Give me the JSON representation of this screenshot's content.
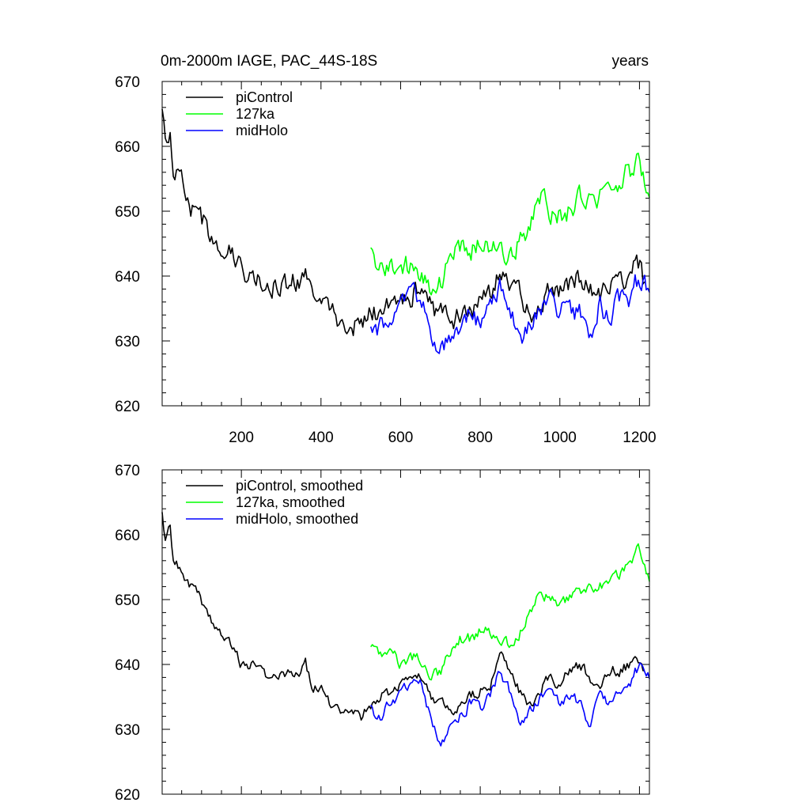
{
  "chart_data": [
    {
      "type": "line",
      "title": "0m-2000m IAGE, PAC_44S-18S",
      "units_label": "years",
      "xlim": [
        1,
        1225
      ],
      "ylim": [
        620,
        670
      ],
      "x_ticks": [
        200,
        400,
        600,
        800,
        1000,
        1200
      ],
      "x_tick_labels": [
        "200",
        "400",
        "600",
        "800",
        "1000",
        "1200"
      ],
      "y_ticks": [
        620,
        630,
        640,
        650,
        660,
        670
      ],
      "y_tick_labels": [
        "620",
        "630",
        "640",
        "650",
        "660",
        "670"
      ],
      "legend": "top-left",
      "series": [
        {
          "name": "piControl",
          "color": "#000000",
          "x": [
            1,
            10,
            20,
            30,
            50,
            70,
            90,
            110,
            130,
            150,
            175,
            200,
            225,
            250,
            275,
            300,
            325,
            350,
            360,
            375,
            400,
            425,
            450,
            475,
            500,
            525,
            550,
            575,
            600,
            625,
            650,
            675,
            700,
            725,
            750,
            775,
            800,
            825,
            850,
            875,
            900,
            925,
            950,
            975,
            1000,
            1025,
            1050,
            1075,
            1100,
            1125,
            1150,
            1175,
            1200,
            1215
          ],
          "y": [
            665,
            660,
            662,
            656,
            654,
            651,
            650,
            648,
            646,
            645,
            643,
            641,
            640,
            639,
            638,
            638,
            639,
            639,
            641,
            637,
            636,
            634,
            633,
            633,
            632,
            634,
            635,
            636,
            637,
            637,
            638,
            635,
            634,
            633,
            634,
            635,
            636,
            637,
            641,
            639,
            637,
            634,
            636,
            638,
            637,
            639,
            640,
            638,
            637,
            639,
            639,
            640,
            642,
            638
          ]
        },
        {
          "name": "127ka",
          "color": "#00ff00",
          "x": [
            525,
            550,
            575,
            600,
            625,
            650,
            675,
            700,
            725,
            750,
            775,
            800,
            825,
            850,
            875,
            900,
            925,
            950,
            975,
            1000,
            1025,
            1050,
            1075,
            1100,
            1125,
            1150,
            1175,
            1200,
            1210,
            1225
          ],
          "y": [
            644,
            641,
            642,
            640,
            642,
            641,
            638,
            639,
            642,
            644,
            644,
            646,
            645,
            644,
            643,
            645,
            648,
            652,
            650,
            649,
            650,
            652,
            653,
            652,
            654,
            655,
            656,
            658,
            655,
            653
          ]
        },
        {
          "name": "midHolo",
          "color": "#0000ff",
          "x": [
            525,
            550,
            575,
            600,
            625,
            650,
            675,
            700,
            725,
            750,
            775,
            800,
            825,
            850,
            875,
            900,
            925,
            950,
            975,
            1000,
            1025,
            1050,
            1075,
            1100,
            1125,
            1150,
            1175,
            1200,
            1210,
            1225
          ],
          "y": [
            633,
            632,
            634,
            636,
            638,
            637,
            632,
            628,
            630,
            632,
            634,
            633,
            635,
            639,
            636,
            630,
            633,
            635,
            636,
            634,
            635,
            634,
            631,
            635,
            634,
            636,
            637,
            640,
            639,
            638
          ]
        }
      ]
    },
    {
      "type": "line",
      "xlim": [
        1,
        1225
      ],
      "ylim": [
        620,
        670
      ],
      "x_ticks": [
        200,
        400,
        600,
        800,
        1000,
        1200
      ],
      "y_ticks": [
        620,
        630,
        640,
        650,
        660,
        670
      ],
      "y_tick_labels": [
        "620",
        "630",
        "640",
        "650",
        "660",
        "670"
      ],
      "legend": "top-left",
      "series": [
        {
          "name": "piControl, smoothed",
          "color": "#000000",
          "x": [
            1,
            10,
            20,
            30,
            50,
            70,
            90,
            110,
            130,
            150,
            175,
            200,
            225,
            250,
            275,
            300,
            325,
            350,
            360,
            375,
            400,
            425,
            450,
            475,
            500,
            525,
            550,
            575,
            600,
            625,
            650,
            675,
            700,
            725,
            750,
            775,
            800,
            825,
            850,
            875,
            900,
            925,
            950,
            975,
            1000,
            1025,
            1050,
            1075,
            1100,
            1125,
            1150,
            1175,
            1200,
            1215
          ],
          "y": [
            663,
            659,
            661,
            656,
            654,
            652,
            651,
            648,
            646,
            645,
            643,
            640,
            640,
            639,
            638,
            638,
            639,
            639,
            641,
            637,
            636,
            634,
            633,
            633,
            632,
            634,
            635,
            636,
            637,
            637,
            638,
            635,
            634,
            633,
            634,
            635,
            636,
            637,
            641,
            639,
            636,
            634,
            636,
            638,
            637,
            639,
            640,
            638,
            637,
            639,
            639,
            640,
            641,
            638
          ]
        },
        {
          "name": "127ka, smoothed",
          "color": "#00ff00",
          "x": [
            525,
            550,
            575,
            600,
            625,
            650,
            675,
            700,
            725,
            750,
            775,
            800,
            825,
            850,
            875,
            900,
            925,
            950,
            975,
            1000,
            1025,
            1050,
            1075,
            1100,
            1125,
            1150,
            1175,
            1200,
            1210,
            1225
          ],
          "y": [
            643,
            641,
            642,
            640,
            641,
            641,
            638,
            639,
            642,
            644,
            644,
            645,
            645,
            644,
            643,
            645,
            648,
            651,
            650,
            649,
            650,
            651,
            652,
            652,
            653,
            654,
            655,
            658,
            655,
            653
          ]
        },
        {
          "name": "midHolo, smoothed",
          "color": "#0000ff",
          "x": [
            525,
            550,
            575,
            600,
            625,
            650,
            675,
            700,
            725,
            750,
            775,
            800,
            825,
            850,
            875,
            900,
            925,
            950,
            975,
            1000,
            1025,
            1050,
            1075,
            1100,
            1125,
            1150,
            1175,
            1200,
            1210,
            1225
          ],
          "y": [
            633,
            632,
            634,
            636,
            637,
            637,
            632,
            628,
            630,
            632,
            634,
            633,
            635,
            639,
            636,
            630,
            633,
            635,
            636,
            634,
            635,
            634,
            631,
            635,
            634,
            636,
            637,
            640,
            639,
            638
          ]
        }
      ]
    }
  ]
}
